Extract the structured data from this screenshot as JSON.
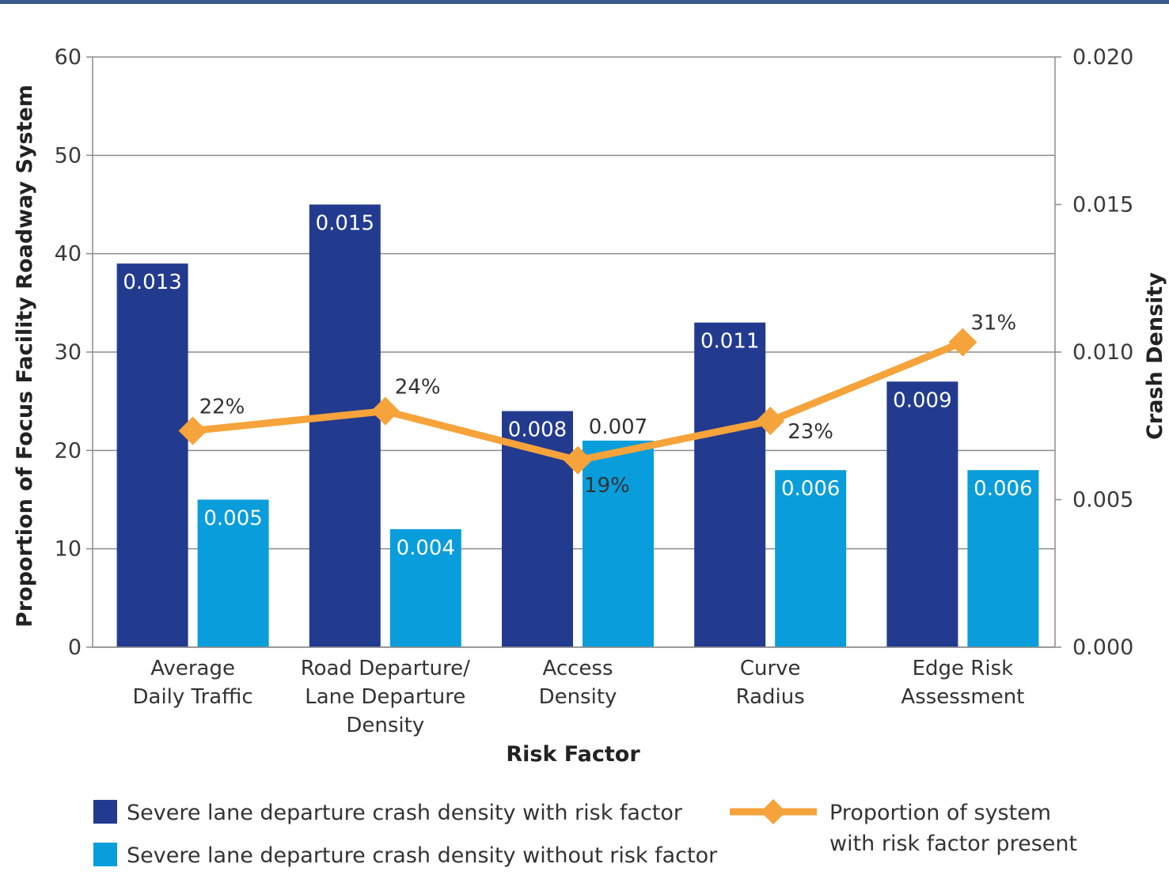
{
  "chart_data": {
    "type": "bar",
    "xlabel": "Risk Factor",
    "ylabel": "Proportion of Focus Facility Roadway System",
    "y2label": "Crash Density",
    "ylim": [
      0,
      60
    ],
    "y2lim": [
      0,
      0.02
    ],
    "yticks": [
      "0",
      "10",
      "20",
      "30",
      "40",
      "50",
      "60"
    ],
    "y2ticks": [
      "0.000",
      "0.005",
      "0.010",
      "0.015",
      "0.020"
    ],
    "grid": true,
    "legend_position": "bottom",
    "categories": [
      [
        "Average",
        "Daily Traffic"
      ],
      [
        "Road Departure/",
        "Lane Departure",
        "Density"
      ],
      [
        "Access",
        "Density"
      ],
      [
        "Curve",
        "Radius"
      ],
      [
        "Edge Risk",
        "Assessment"
      ]
    ],
    "series": [
      {
        "name": "Severe lane departure crash density with risk factor",
        "type": "bar",
        "axis": "right",
        "color": "#233b8f",
        "values": [
          0.013,
          0.015,
          0.008,
          0.011,
          0.009
        ],
        "labels": [
          "0.013",
          "0.015",
          "0.008",
          "0.011",
          "0.009"
        ]
      },
      {
        "name": "Severe lane departure crash density without risk factor",
        "type": "bar",
        "axis": "right",
        "color": "#0a9ddb",
        "values": [
          0.005,
          0.004,
          0.007,
          0.006,
          0.006
        ],
        "labels": [
          "0.005",
          "0.004",
          "0.007",
          "0.006",
          "0.006"
        ]
      },
      {
        "name": "Proportion of system with risk factor present",
        "type": "line",
        "axis": "left",
        "color": "#f5a33a",
        "values": [
          22,
          24,
          19,
          23,
          31
        ],
        "labels": [
          "22%",
          "24%",
          "19%",
          "23%",
          "31%"
        ]
      }
    ]
  },
  "legend": {
    "dark_bar": "Severe lane departure crash density with risk factor",
    "light_bar": "Severe lane departure crash density without risk factor",
    "line_text": [
      "Proportion of system",
      "with risk factor present"
    ]
  }
}
